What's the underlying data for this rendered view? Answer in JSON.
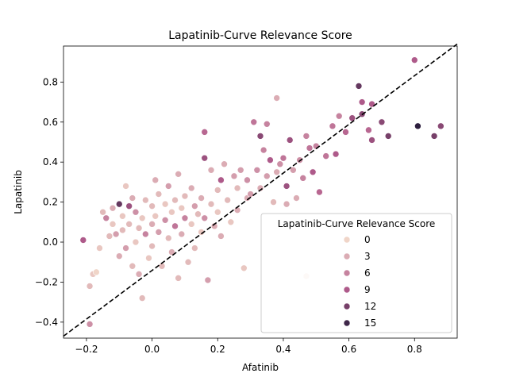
{
  "chart_data": {
    "type": "scatter",
    "title": "Lapatinib-Curve Relevance Score",
    "xlabel": "Afatinib",
    "ylabel": "Lapatinib",
    "xlim": [
      -0.27,
      0.93
    ],
    "ylim": [
      -0.48,
      0.98
    ],
    "xticks": [
      "−0.2",
      "0.0",
      "0.2",
      "0.4",
      "0.6",
      "0.8"
    ],
    "xtick_values": [
      -0.2,
      0.0,
      0.2,
      0.4,
      0.6,
      0.8
    ],
    "yticks": [
      "−0.4",
      "−0.2",
      "0.0",
      "0.2",
      "0.4",
      "0.6",
      "0.8"
    ],
    "ytick_values": [
      -0.4,
      -0.2,
      0.0,
      0.2,
      0.4,
      0.6,
      0.8
    ],
    "grid": false,
    "reference_line": {
      "style": "dashed",
      "color": "#000000",
      "points": [
        [
          -0.27,
          -0.47
        ],
        [
          0.93,
          0.99
        ]
      ]
    },
    "color_scale": {
      "min": 0,
      "max": 16,
      "low_color": "#f0d5c8",
      "high_color": "#2d1e3e"
    },
    "legend": {
      "title": "Lapatinib-Curve Relevance Score",
      "position": "lower-right",
      "entries": [
        {
          "label": "0",
          "value": 0
        },
        {
          "label": "3",
          "value": 3
        },
        {
          "label": "6",
          "value": 6
        },
        {
          "label": "9",
          "value": 9
        },
        {
          "label": "12",
          "value": 12
        },
        {
          "label": "15",
          "value": 15
        }
      ]
    },
    "points": [
      [
        -0.21,
        0.01,
        9
      ],
      [
        -0.19,
        -0.41,
        5
      ],
      [
        -0.19,
        -0.22,
        2
      ],
      [
        -0.18,
        -0.16,
        1
      ],
      [
        -0.17,
        -0.15,
        0
      ],
      [
        -0.16,
        -0.03,
        1
      ],
      [
        -0.15,
        0.15,
        2
      ],
      [
        -0.14,
        0.12,
        6
      ],
      [
        -0.13,
        0.03,
        2
      ],
      [
        -0.12,
        0.17,
        3
      ],
      [
        -0.12,
        0.09,
        1
      ],
      [
        -0.11,
        0.04,
        4
      ],
      [
        -0.1,
        0.19,
        13
      ],
      [
        -0.1,
        -0.07,
        3
      ],
      [
        -0.09,
        0.13,
        1
      ],
      [
        -0.09,
        0.06,
        2
      ],
      [
        -0.08,
        0.28,
        1
      ],
      [
        -0.08,
        -0.03,
        4
      ],
      [
        -0.07,
        0.18,
        10
      ],
      [
        -0.07,
        0.09,
        2
      ],
      [
        -0.06,
        0.22,
        3
      ],
      [
        -0.06,
        -0.12,
        2
      ],
      [
        -0.05,
        0.15,
        5
      ],
      [
        -0.05,
        0.0,
        1
      ],
      [
        -0.04,
        0.07,
        2
      ],
      [
        -0.04,
        -0.16,
        3
      ],
      [
        -0.03,
        0.12,
        1
      ],
      [
        -0.03,
        -0.28,
        2
      ],
      [
        -0.02,
        0.21,
        2
      ],
      [
        -0.02,
        0.04,
        6
      ],
      [
        -0.01,
        -0.08,
        1
      ],
      [
        0.0,
        0.18,
        2
      ],
      [
        0.0,
        0.09,
        3
      ],
      [
        0.0,
        -0.02,
        2
      ],
      [
        0.01,
        0.31,
        3
      ],
      [
        0.01,
        0.13,
        1
      ],
      [
        0.02,
        0.24,
        2
      ],
      [
        0.02,
        0.05,
        4
      ],
      [
        0.03,
        -0.12,
        2
      ],
      [
        0.04,
        0.19,
        1
      ],
      [
        0.04,
        0.11,
        5
      ],
      [
        0.05,
        0.28,
        4
      ],
      [
        0.05,
        0.02,
        2
      ],
      [
        0.06,
        0.15,
        1
      ],
      [
        0.06,
        -0.05,
        3
      ],
      [
        0.07,
        0.21,
        2
      ],
      [
        0.07,
        0.08,
        7
      ],
      [
        0.08,
        0.34,
        3
      ],
      [
        0.08,
        -0.18,
        2
      ],
      [
        0.09,
        0.17,
        1
      ],
      [
        0.09,
        0.04,
        3
      ],
      [
        0.1,
        0.23,
        2
      ],
      [
        0.1,
        0.12,
        6
      ],
      [
        0.11,
        -0.1,
        2
      ],
      [
        0.12,
        0.27,
        3
      ],
      [
        0.12,
        0.09,
        1
      ],
      [
        0.13,
        0.18,
        4
      ],
      [
        0.13,
        -0.03,
        2
      ],
      [
        0.14,
        0.14,
        2
      ],
      [
        0.15,
        0.22,
        3
      ],
      [
        0.15,
        0.05,
        1
      ],
      [
        0.16,
        0.55,
        8
      ],
      [
        0.16,
        0.42,
        10
      ],
      [
        0.16,
        0.12,
        5
      ],
      [
        0.17,
        -0.19,
        4
      ],
      [
        0.18,
        0.36,
        3
      ],
      [
        0.18,
        0.19,
        2
      ],
      [
        0.19,
        0.08,
        3
      ],
      [
        0.2,
        0.26,
        2
      ],
      [
        0.2,
        0.15,
        1
      ],
      [
        0.21,
        0.31,
        9
      ],
      [
        0.21,
        0.03,
        3
      ],
      [
        0.22,
        0.39,
        3
      ],
      [
        0.23,
        0.21,
        2
      ],
      [
        0.24,
        0.1,
        1
      ],
      [
        0.25,
        0.33,
        4
      ],
      [
        0.26,
        0.27,
        2
      ],
      [
        0.26,
        0.16,
        3
      ],
      [
        0.27,
        0.36,
        4
      ],
      [
        0.28,
        -0.13,
        1
      ],
      [
        0.29,
        0.22,
        3
      ],
      [
        0.29,
        0.31,
        5
      ],
      [
        0.3,
        0.24,
        4
      ],
      [
        0.31,
        0.6,
        7
      ],
      [
        0.32,
        0.36,
        5
      ],
      [
        0.33,
        0.53,
        11
      ],
      [
        0.33,
        0.27,
        3
      ],
      [
        0.34,
        0.46,
        6
      ],
      [
        0.35,
        0.33,
        4
      ],
      [
        0.35,
        0.59,
        6
      ],
      [
        0.36,
        0.41,
        9
      ],
      [
        0.37,
        0.2,
        2
      ],
      [
        0.38,
        0.35,
        3
      ],
      [
        0.38,
        0.72,
        3
      ],
      [
        0.39,
        0.39,
        5
      ],
      [
        0.4,
        0.42,
        7
      ],
      [
        0.41,
        0.28,
        10
      ],
      [
        0.41,
        0.19,
        3
      ],
      [
        0.42,
        0.51,
        10
      ],
      [
        0.43,
        0.36,
        4
      ],
      [
        0.44,
        0.22,
        3
      ],
      [
        0.45,
        0.41,
        5
      ],
      [
        0.46,
        0.32,
        6
      ],
      [
        0.47,
        0.53,
        6
      ],
      [
        0.47,
        -0.17,
        0
      ],
      [
        0.48,
        0.47,
        7
      ],
      [
        0.49,
        0.35,
        9
      ],
      [
        0.5,
        0.48,
        6
      ],
      [
        0.51,
        0.25,
        8
      ],
      [
        0.53,
        0.43,
        7
      ],
      [
        0.55,
        0.58,
        7
      ],
      [
        0.56,
        0.44,
        9
      ],
      [
        0.57,
        0.63,
        6
      ],
      [
        0.59,
        0.55,
        8
      ],
      [
        0.61,
        0.62,
        10
      ],
      [
        0.63,
        0.78,
        13
      ],
      [
        0.64,
        0.7,
        9
      ],
      [
        0.64,
        0.64,
        11
      ],
      [
        0.66,
        0.56,
        8
      ],
      [
        0.67,
        0.51,
        10
      ],
      [
        0.67,
        0.69,
        9
      ],
      [
        0.7,
        0.6,
        11
      ],
      [
        0.72,
        0.53,
        12
      ],
      [
        0.8,
        0.91,
        9
      ],
      [
        0.81,
        0.58,
        16
      ],
      [
        0.86,
        0.53,
        12
      ],
      [
        0.88,
        0.58,
        11
      ]
    ]
  }
}
